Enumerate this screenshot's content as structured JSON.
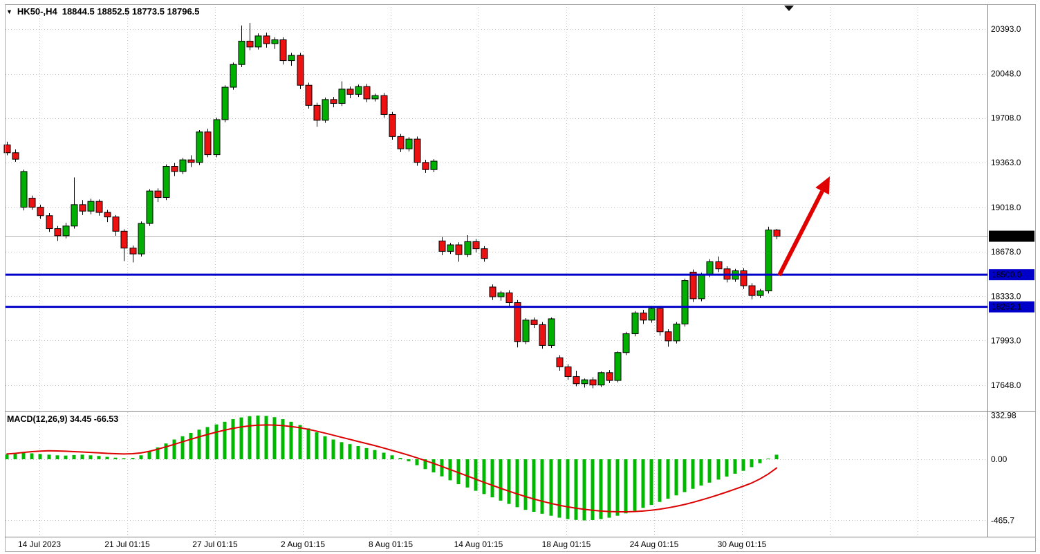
{
  "window": {
    "title_symbol": "HK50-,H4",
    "title_ohlc": "18844.5  18852.5  18773.5  18796.5"
  },
  "colors": {
    "bull_candle": "#00B000",
    "bear_candle": "#EE1111",
    "histogram": "#00B800",
    "signal_line": "#DD0000",
    "level_line": "#0000C8",
    "current_price_bg": "#000000",
    "arrow": "#E00000",
    "grid": "#C4C4C4",
    "current_price_line": "#B0B0B0"
  },
  "chart_data": {
    "type": "candlestick",
    "symbol": "HK50-",
    "timeframe": "H4",
    "ohlc_current": {
      "open": 18844.5,
      "high": 18852.5,
      "low": 18773.5,
      "close": 18796.5
    },
    "x_labels": [
      "14 Jul 2023",
      "21 Jul 01:15",
      "27 Jul 01:15",
      "2 Aug 01:15",
      "8 Aug 01:15",
      "14 Aug 01:15",
      "18 Aug 01:15",
      "24 Aug 01:15",
      "30 Aug 01:15"
    ],
    "price_axis_ticks": [
      {
        "v": 20393.0,
        "label": "20393.0"
      },
      {
        "v": 20048.0,
        "label": "20048.0"
      },
      {
        "v": 19708.0,
        "label": "19708.0"
      },
      {
        "v": 19363.0,
        "label": "19363.0"
      },
      {
        "v": 19018.0,
        "label": "19018.0"
      },
      {
        "v": 18678.0,
        "label": "18678.0"
      },
      {
        "v": 18333.0,
        "label": "18333.0"
      },
      {
        "v": 17993.0,
        "label": "17993.0"
      },
      {
        "v": 17648.0,
        "label": "17648.0"
      }
    ],
    "levels": [
      {
        "price": 18500.0,
        "label": "18500.0"
      },
      {
        "price": 18252.1,
        "label": "18252.1"
      }
    ],
    "current_price": {
      "v": 18796.5,
      "label": "18796.5"
    },
    "trend_arrow": {
      "from": {
        "bar": 92.3,
        "price": 18495
      },
      "to": {
        "bar": 98.35,
        "price": 19258
      }
    },
    "candles": [
      [
        19500,
        19525,
        19420,
        19440
      ],
      [
        19440,
        19465,
        19370,
        19390
      ],
      [
        19020,
        19310,
        18995,
        19295
      ],
      [
        19090,
        19110,
        19000,
        19020
      ],
      [
        19020,
        19040,
        18930,
        18955
      ],
      [
        18955,
        18975,
        18830,
        18855
      ],
      [
        18855,
        18875,
        18760,
        18800
      ],
      [
        18800,
        18900,
        18780,
        18875
      ],
      [
        18875,
        19250,
        18855,
        19040
      ],
      [
        19040,
        19075,
        18960,
        18990
      ],
      [
        18990,
        19085,
        18965,
        19065
      ],
      [
        19065,
        19080,
        18955,
        18980
      ],
      [
        18980,
        19000,
        18905,
        18945
      ],
      [
        18945,
        18960,
        18800,
        18835
      ],
      [
        18835,
        18850,
        18605,
        18705
      ],
      [
        18705,
        18725,
        18595,
        18660
      ],
      [
        18660,
        18910,
        18640,
        18895
      ],
      [
        18895,
        19160,
        18875,
        19145
      ],
      [
        19145,
        19165,
        19060,
        19095
      ],
      [
        19095,
        19350,
        19075,
        19335
      ],
      [
        19335,
        19360,
        19260,
        19295
      ],
      [
        19295,
        19400,
        19275,
        19385
      ],
      [
        19385,
        19420,
        19330,
        19365
      ],
      [
        19365,
        19615,
        19345,
        19600
      ],
      [
        19600,
        19625,
        19405,
        19425
      ],
      [
        19425,
        19710,
        19405,
        19695
      ],
      [
        19695,
        19960,
        19675,
        19945
      ],
      [
        19945,
        20135,
        19925,
        20120
      ],
      [
        20120,
        20420,
        20100,
        20300
      ],
      [
        20300,
        20440,
        20230,
        20255
      ],
      [
        20255,
        20360,
        20235,
        20340
      ],
      [
        20340,
        20365,
        20250,
        20280
      ],
      [
        20280,
        20330,
        20240,
        20310
      ],
      [
        20310,
        20330,
        20120,
        20150
      ],
      [
        20150,
        20210,
        20110,
        20190
      ],
      [
        20190,
        20210,
        19930,
        19960
      ],
      [
        19960,
        19980,
        19780,
        19805
      ],
      [
        19805,
        19825,
        19640,
        19690
      ],
      [
        19690,
        19865,
        19670,
        19850
      ],
      [
        19850,
        19870,
        19790,
        19820
      ],
      [
        19820,
        19990,
        19800,
        19930
      ],
      [
        19930,
        19950,
        19860,
        19890
      ],
      [
        19890,
        19965,
        19870,
        19950
      ],
      [
        19950,
        19970,
        19830,
        19855
      ],
      [
        19855,
        19895,
        19835,
        19880
      ],
      [
        19880,
        19900,
        19710,
        19735
      ],
      [
        19735,
        19755,
        19540,
        19565
      ],
      [
        19565,
        19585,
        19445,
        19470
      ],
      [
        19470,
        19560,
        19450,
        19545
      ],
      [
        19545,
        19565,
        19340,
        19365
      ],
      [
        19365,
        19385,
        19285,
        19310
      ],
      [
        19310,
        19390,
        19290,
        19375
      ],
      [
        18760,
        18790,
        18650,
        18680
      ],
      [
        18680,
        18745,
        18660,
        18730
      ],
      [
        18730,
        18750,
        18600,
        18655
      ],
      [
        18655,
        18805,
        18635,
        18755
      ],
      [
        18755,
        18775,
        18670,
        18700
      ],
      [
        18700,
        18720,
        18600,
        18625
      ],
      [
        18405,
        18425,
        18305,
        18330
      ],
      [
        18330,
        18375,
        18300,
        18360
      ],
      [
        18360,
        18380,
        18255,
        18285
      ],
      [
        18285,
        18305,
        17940,
        17985
      ],
      [
        17985,
        18165,
        17965,
        18150
      ],
      [
        18150,
        18170,
        18090,
        18115
      ],
      [
        18115,
        18135,
        17930,
        17955
      ],
      [
        17955,
        18170,
        17935,
        18160
      ],
      [
        17860,
        17880,
        17760,
        17790
      ],
      [
        17790,
        17810,
        17690,
        17715
      ],
      [
        17715,
        17760,
        17640,
        17660
      ],
      [
        17660,
        17700,
        17630,
        17690
      ],
      [
        17690,
        17710,
        17625,
        17650
      ],
      [
        17650,
        17755,
        17635,
        17745
      ],
      [
        17745,
        17765,
        17665,
        17685
      ],
      [
        17685,
        17910,
        17670,
        17900
      ],
      [
        17900,
        18060,
        17880,
        18045
      ],
      [
        18045,
        18220,
        18025,
        18205
      ],
      [
        18205,
        18230,
        18120,
        18150
      ],
      [
        18150,
        18260,
        18130,
        18240
      ],
      [
        18240,
        18260,
        18030,
        18060
      ],
      [
        18060,
        18080,
        17945,
        17990
      ],
      [
        17990,
        18135,
        17970,
        18120
      ],
      [
        18120,
        18470,
        18100,
        18455
      ],
      [
        18520,
        18540,
        18290,
        18315
      ],
      [
        18315,
        18515,
        18295,
        18500
      ],
      [
        18500,
        18620,
        18480,
        18600
      ],
      [
        18600,
        18640,
        18520,
        18545
      ],
      [
        18545,
        18565,
        18440,
        18465
      ],
      [
        18465,
        18545,
        18445,
        18530
      ],
      [
        18530,
        18550,
        18390,
        18415
      ],
      [
        18415,
        18435,
        18310,
        18340
      ],
      [
        18340,
        18390,
        18320,
        18375
      ],
      [
        18375,
        18870,
        18355,
        18845
      ],
      [
        18844.5,
        18852.5,
        18773.5,
        18796.5
      ]
    ],
    "macd": {
      "label": "MACD(12,26,9) 34.45 -66.53",
      "params": "12,26,9",
      "value": 34.45,
      "signal_value": -66.53,
      "axis_ticks": [
        {
          "v": 332.98,
          "label": "332.98"
        },
        {
          "v": 0,
          "label": "0.00"
        },
        {
          "v": -465.7,
          "label": "-465.7"
        }
      ],
      "histogram": [
        35,
        40,
        50,
        45,
        40,
        35,
        30,
        28,
        32,
        35,
        30,
        25,
        18,
        12,
        8,
        10,
        30,
        60,
        90,
        120,
        150,
        175,
        200,
        225,
        245,
        265,
        285,
        305,
        318,
        328,
        333,
        330,
        320,
        305,
        285,
        260,
        235,
        205,
        175,
        150,
        130,
        115,
        100,
        85,
        70,
        50,
        30,
        10,
        -15,
        -45,
        -75,
        -100,
        -130,
        -160,
        -190,
        -215,
        -240,
        -265,
        -290,
        -315,
        -340,
        -365,
        -385,
        -400,
        -415,
        -430,
        -445,
        -455,
        -462,
        -465.7,
        -463,
        -455,
        -445,
        -430,
        -412,
        -392,
        -370,
        -348,
        -325,
        -300,
        -275,
        -250,
        -225,
        -200,
        -178,
        -155,
        -132,
        -110,
        -88,
        -60,
        -30,
        5,
        34.45
      ],
      "signal": [
        40,
        45,
        52,
        58,
        62,
        64,
        63,
        61,
        58,
        55,
        52,
        49,
        45,
        42,
        40,
        42,
        48,
        60,
        76,
        94,
        113,
        133,
        152,
        171,
        189,
        206,
        221,
        235,
        246,
        254,
        259,
        261,
        260,
        256,
        249,
        240,
        228,
        214,
        199,
        183,
        167,
        151,
        135,
        119,
        103,
        86,
        68,
        50,
        31,
        11,
        -10,
        -32,
        -55,
        -79,
        -103,
        -127,
        -151,
        -175,
        -198,
        -221,
        -243,
        -264,
        -284,
        -303,
        -320,
        -336,
        -350,
        -362,
        -372,
        -381,
        -388,
        -394,
        -398,
        -400,
        -400,
        -398,
        -394,
        -388,
        -380,
        -370,
        -358,
        -344,
        -328,
        -310,
        -291,
        -271,
        -250,
        -228,
        -205,
        -181,
        -150,
        -112,
        -66.53
      ]
    }
  }
}
